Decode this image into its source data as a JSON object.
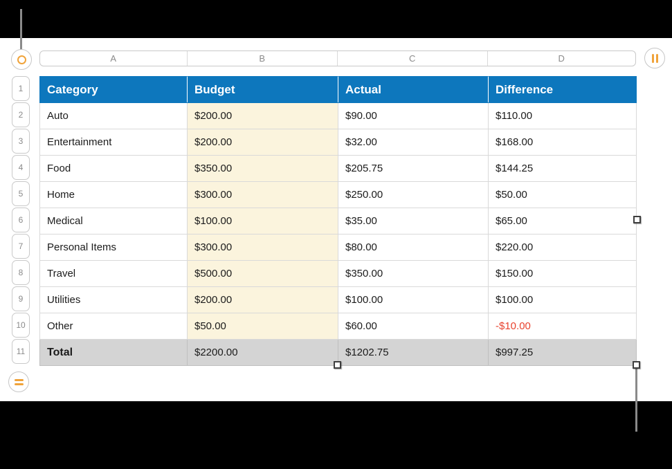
{
  "colors": {
    "header_blue": "#0d77bd",
    "budget_yellow": "#fbf4dd",
    "total_gray": "#d4d4d4",
    "negative_red": "#e8432f",
    "handle_orange": "#f0a33a",
    "grid_line": "#d9d9d9"
  },
  "column_bar": {
    "letters": [
      "A",
      "B",
      "C",
      "D"
    ]
  },
  "row_bar": {
    "numbers": [
      "1",
      "2",
      "3",
      "4",
      "5",
      "6",
      "7",
      "8",
      "9",
      "10",
      "11"
    ]
  },
  "table": {
    "headers": [
      "Category",
      "Budget",
      "Actual",
      "Difference"
    ],
    "rows": [
      {
        "category": "Auto",
        "budget": "$200.00",
        "actual": "$90.00",
        "difference": "$110.00",
        "negative": false
      },
      {
        "category": "Entertainment",
        "budget": "$200.00",
        "actual": "$32.00",
        "difference": "$168.00",
        "negative": false
      },
      {
        "category": "Food",
        "budget": "$350.00",
        "actual": "$205.75",
        "difference": "$144.25",
        "negative": false
      },
      {
        "category": "Home",
        "budget": "$300.00",
        "actual": "$250.00",
        "difference": "$50.00",
        "negative": false
      },
      {
        "category": "Medical",
        "budget": "$100.00",
        "actual": "$35.00",
        "difference": "$65.00",
        "negative": false
      },
      {
        "category": "Personal Items",
        "budget": "$300.00",
        "actual": "$80.00",
        "difference": "$220.00",
        "negative": false
      },
      {
        "category": "Travel",
        "budget": "$500.00",
        "actual": "$350.00",
        "difference": "$150.00",
        "negative": false
      },
      {
        "category": "Utilities",
        "budget": "$200.00",
        "actual": "$100.00",
        "difference": "$100.00",
        "negative": false
      },
      {
        "category": "Other",
        "budget": "$50.00",
        "actual": "$60.00",
        "difference": "-$10.00",
        "negative": true
      }
    ],
    "total": {
      "category": "Total",
      "budget": "$2200.00",
      "actual": "$1202.75",
      "difference": "$997.25"
    }
  }
}
